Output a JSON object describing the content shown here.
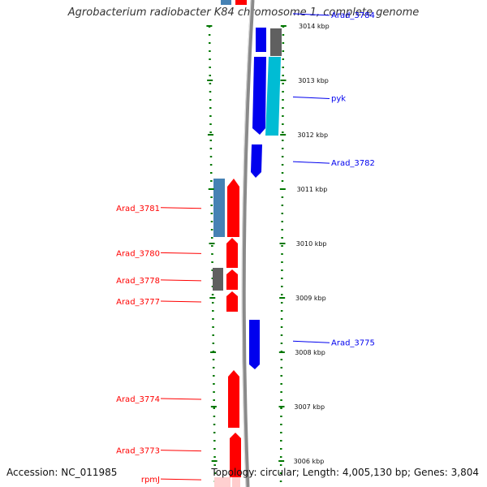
{
  "title": "Agrobacterium radiobacter K84 chromosome 1, complete genome",
  "accession": "Accession: NC_011985",
  "topology": "Topology: circular; Length: 4,005,130 bp; Genes: 3,804",
  "colors": {
    "forward": "#ff0000",
    "reverse": "#0000ee",
    "steelblue": "#4682b4",
    "gray": "#606060",
    "cyan": "#00bcd4",
    "tick": "#007700",
    "backbone": "#8a8a8a"
  },
  "kbp_ticks": [
    {
      "label": "3014 kbp",
      "kbp": 3014
    },
    {
      "label": "3013 kbp",
      "kbp": 3013
    },
    {
      "label": "3012 kbp",
      "kbp": 3012
    },
    {
      "label": "3011 kbp",
      "kbp": 3011
    },
    {
      "label": "3010 kbp",
      "kbp": 3010
    },
    {
      "label": "3009 kbp",
      "kbp": 3009
    },
    {
      "label": "3008 kbp",
      "kbp": 3008
    },
    {
      "label": "3007 kbp",
      "kbp": 3007
    },
    {
      "label": "3006 kbp",
      "kbp": 3006
    }
  ],
  "genes_right": [
    {
      "name": "Arad_3784",
      "kbp": 3014.21,
      "color": "reverse"
    },
    {
      "name": "pyk",
      "kbp": 3012.68,
      "color": "reverse"
    },
    {
      "name": "Arad_3782",
      "kbp": 3011.49,
      "color": "reverse"
    },
    {
      "name": "Arad_3775",
      "kbp": 3008.19,
      "color": "reverse"
    }
  ],
  "genes_left": [
    {
      "name": "Arad_3781",
      "kbp": 3010.66,
      "color": "forward"
    },
    {
      "name": "Arad_3780",
      "kbp": 3009.83,
      "color": "forward"
    },
    {
      "name": "Arad_3778",
      "kbp": 3009.33,
      "color": "forward"
    },
    {
      "name": "Arad_3777",
      "kbp": 3008.94,
      "color": "forward"
    },
    {
      "name": "Arad_3774",
      "kbp": 3007.15,
      "color": "forward"
    },
    {
      "name": "Arad_3773",
      "kbp": 3006.2,
      "color": "forward"
    },
    {
      "name": "rpmJ",
      "kbp": 3005.67,
      "color": "forward"
    }
  ]
}
